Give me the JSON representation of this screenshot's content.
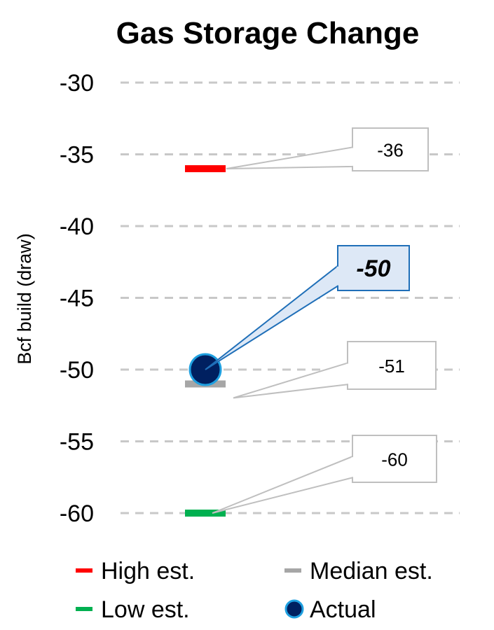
{
  "chart_data": {
    "type": "scatter",
    "title": "Gas Storage Change",
    "xlabel": "",
    "ylabel": "Bcf build (draw)",
    "ylim": [
      -60,
      -30
    ],
    "yticks": [
      -30,
      -35,
      -40,
      -45,
      -50,
      -55,
      -60
    ],
    "grid": true,
    "legend_position": "bottom",
    "series": [
      {
        "name": "High est.",
        "marker": "dash",
        "color": "#ff0000",
        "value": -36,
        "label": "-36"
      },
      {
        "name": "Median est.",
        "marker": "dash",
        "color": "#a6a6a6",
        "value": -51,
        "label": "-51"
      },
      {
        "name": "Low est.",
        "marker": "dash",
        "color": "#00b050",
        "value": -60,
        "label": "-60"
      },
      {
        "name": "Actual",
        "marker": "circle",
        "color": "#002060",
        "edge_color": "#1fa0e0",
        "value": -50,
        "label": "-50"
      }
    ]
  }
}
